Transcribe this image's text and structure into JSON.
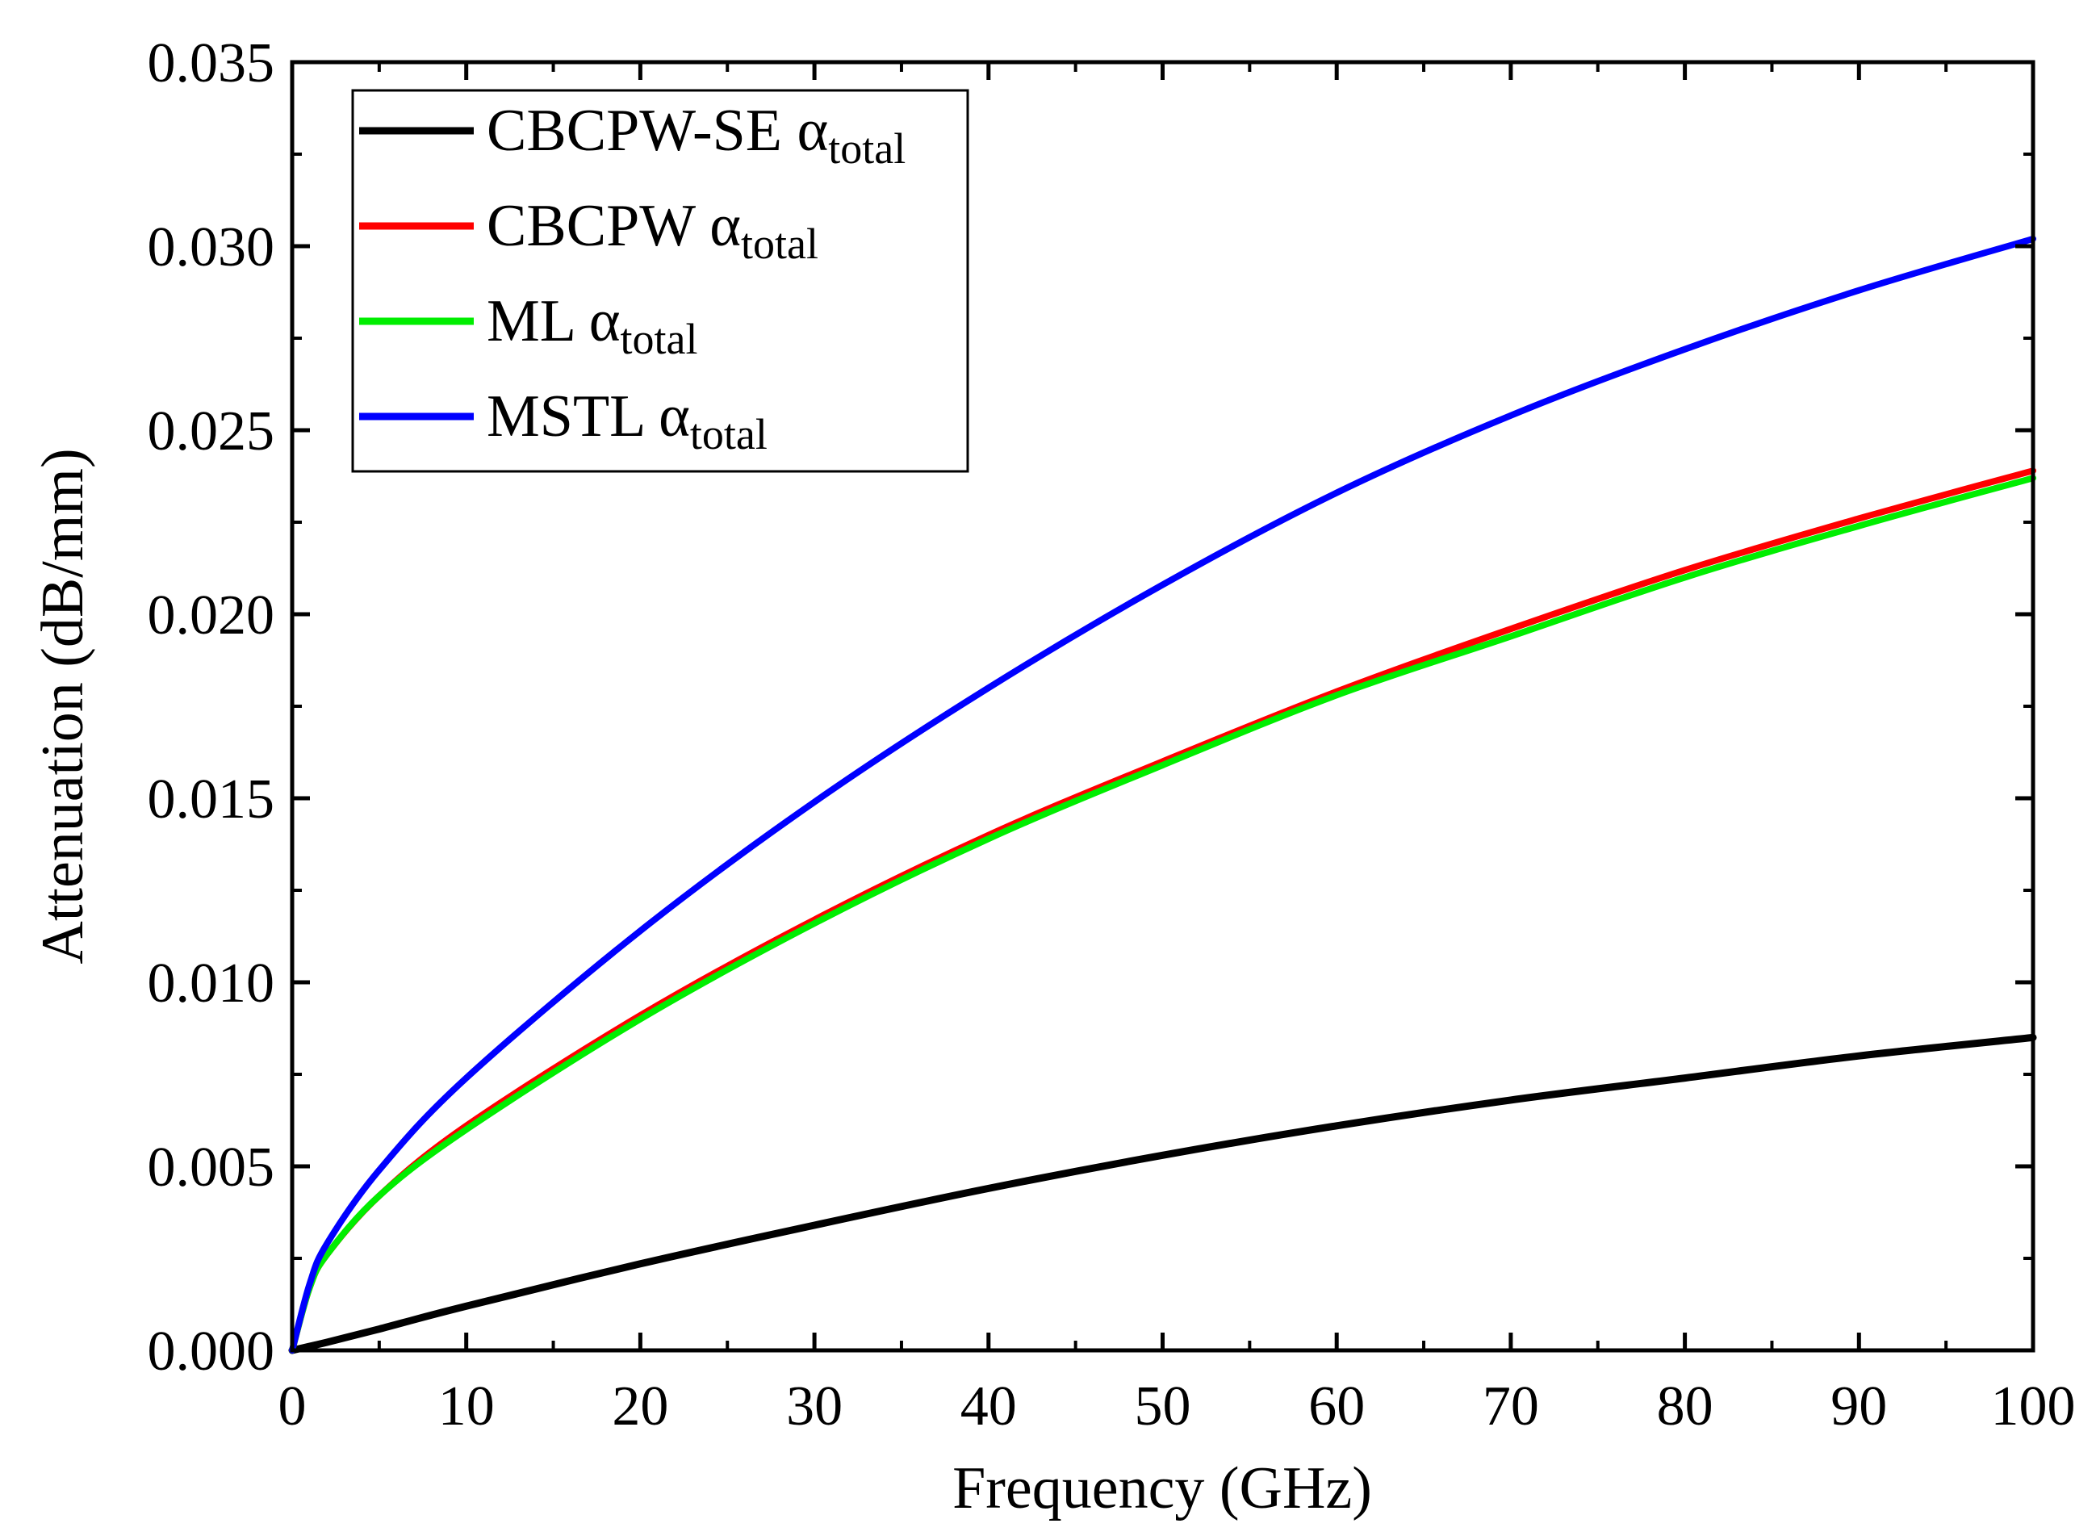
{
  "chart_data": {
    "type": "line",
    "title": "",
    "xlabel": "Frequency (GHz)",
    "ylabel": "Attenuation (dB/mm)",
    "xlim": [
      0,
      100
    ],
    "ylim": [
      0,
      0.035
    ],
    "xticks": [
      0,
      10,
      20,
      30,
      40,
      50,
      60,
      70,
      80,
      90,
      100
    ],
    "xtick_labels": [
      "0",
      "10",
      "20",
      "30",
      "40",
      "50",
      "60",
      "70",
      "80",
      "90",
      "100"
    ],
    "yticks": [
      0,
      0.005,
      0.01,
      0.015,
      0.02,
      0.025,
      0.03,
      0.035
    ],
    "ytick_labels": [
      "0.000",
      "0.005",
      "0.010",
      "0.015",
      "0.020",
      "0.025",
      "0.030",
      "0.035"
    ],
    "grid": false,
    "legend_position": "top-left",
    "x": [
      0,
      1,
      2,
      5,
      10,
      20,
      30,
      40,
      50,
      60,
      70,
      80,
      90,
      100
    ],
    "series": [
      {
        "name": "CBCPW-SE",
        "name_alpha": "α",
        "name_sub": "total",
        "color": "#000000",
        "values": [
          0,
          0.00011,
          0.00022,
          0.00058,
          0.0012,
          0.00235,
          0.0034,
          0.0044,
          0.0053,
          0.0061,
          0.0068,
          0.0074,
          0.008,
          0.0085
        ]
      },
      {
        "name": "CBCPW",
        "name_alpha": "α",
        "name_sub": "total",
        "color": "#ff0000",
        "values": [
          0,
          0.0017,
          0.0026,
          0.0042,
          0.0061,
          0.0091,
          0.0117,
          0.014,
          0.016,
          0.0179,
          0.0196,
          0.0212,
          0.0226,
          0.0239
        ]
      },
      {
        "name": "ML",
        "name_alpha": "α",
        "name_sub": "total",
        "color": "#00ee00",
        "values": [
          0,
          0.0017,
          0.0026,
          0.0042,
          0.006,
          0.009,
          0.0116,
          0.0139,
          0.0159,
          0.0178,
          0.0194,
          0.021,
          0.0224,
          0.0237
        ]
      },
      {
        "name": "MSTL",
        "name_alpha": "α",
        "name_sub": "total",
        "color": "#0000ff",
        "values": [
          0,
          0.0018,
          0.0029,
          0.0049,
          0.0074,
          0.0114,
          0.0149,
          0.018,
          0.0208,
          0.0233,
          0.0254,
          0.0272,
          0.0288,
          0.0302
        ]
      }
    ]
  }
}
